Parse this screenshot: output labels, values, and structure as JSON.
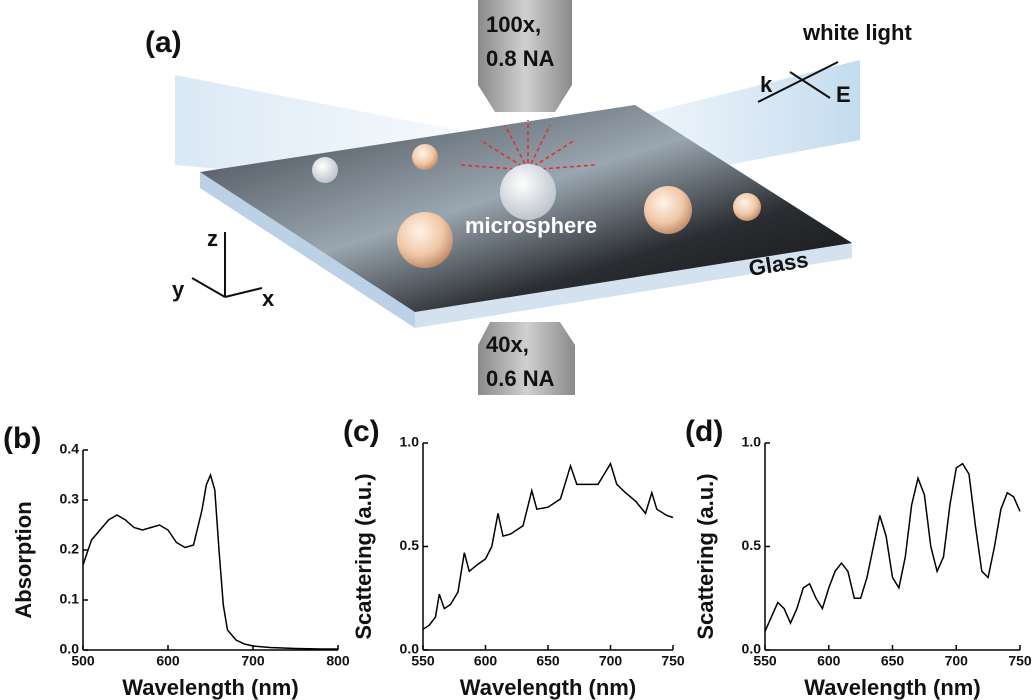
{
  "schematic": {
    "panel_label": "(a)",
    "top_objective": [
      "100x,",
      "0.8 NA"
    ],
    "bottom_objective": [
      "40x,",
      "0.6 NA"
    ],
    "light": "white light",
    "wave_vector": "k",
    "field": "E",
    "particle": "microsphere",
    "substrate": "Glass",
    "axes": [
      "z",
      "y",
      "x"
    ]
  },
  "chart_data": [
    {
      "type": "line",
      "panel_label": "(b)",
      "ylabel": "Absorption",
      "xlabel": "Wavelength (nm)",
      "color": "#000000",
      "x": [
        500,
        510,
        520,
        530,
        540,
        550,
        560,
        570,
        580,
        590,
        600,
        610,
        620,
        630,
        640,
        645,
        650,
        655,
        660,
        665,
        670,
        680,
        690,
        700,
        720,
        750,
        780,
        800
      ],
      "values": [
        0.17,
        0.22,
        0.24,
        0.26,
        0.27,
        0.26,
        0.245,
        0.24,
        0.245,
        0.25,
        0.24,
        0.215,
        0.205,
        0.21,
        0.28,
        0.33,
        0.35,
        0.32,
        0.2,
        0.09,
        0.04,
        0.02,
        0.012,
        0.008,
        0.005,
        0.003,
        0.002,
        0.002
      ],
      "xlim": [
        500,
        800
      ],
      "ylim": [
        0,
        0.4
      ],
      "xticks": [
        500,
        600,
        700,
        800
      ],
      "yticks": [
        {
          "value": 0,
          "label": "0.0"
        },
        0.1,
        0.2,
        0.3,
        0.4
      ]
    },
    {
      "type": "line",
      "panel_label": "(c)",
      "ylabel": "Scattering (a.u.)",
      "xlabel": "Wavelength (nm)",
      "color": "#000000",
      "x": [
        550,
        555,
        560,
        563,
        567,
        572,
        578,
        583,
        587,
        593,
        600,
        605,
        610,
        614,
        620,
        630,
        637,
        641,
        650,
        660,
        668,
        673,
        680,
        690,
        700,
        705,
        712,
        720,
        728,
        733,
        737,
        745,
        750
      ],
      "values": [
        0.1,
        0.12,
        0.16,
        0.27,
        0.2,
        0.22,
        0.28,
        0.47,
        0.38,
        0.41,
        0.44,
        0.5,
        0.66,
        0.55,
        0.56,
        0.6,
        0.77,
        0.68,
        0.69,
        0.73,
        0.89,
        0.8,
        0.8,
        0.8,
        0.9,
        0.8,
        0.76,
        0.72,
        0.66,
        0.76,
        0.68,
        0.65,
        0.64
      ],
      "xlim": [
        550,
        750
      ],
      "ylim": [
        0,
        1.0
      ],
      "xticks": [
        550,
        600,
        650,
        700,
        750
      ],
      "yticks": [
        {
          "value": 0,
          "label": "0.0"
        },
        0.5,
        {
          "value": 1,
          "label": "1.0"
        }
      ]
    },
    {
      "type": "line",
      "panel_label": "(d)",
      "ylabel": "Scattering (a.u.)",
      "xlabel": "Wavelength (nm)",
      "color": "#000000",
      "x": [
        550,
        555,
        560,
        565,
        570,
        575,
        580,
        585,
        590,
        595,
        600,
        605,
        610,
        615,
        620,
        625,
        630,
        635,
        640,
        645,
        650,
        655,
        660,
        665,
        670,
        675,
        680,
        685,
        690,
        695,
        700,
        705,
        710,
        715,
        720,
        725,
        730,
        735,
        740,
        745,
        750
      ],
      "values": [
        0.09,
        0.16,
        0.23,
        0.2,
        0.13,
        0.2,
        0.3,
        0.32,
        0.25,
        0.2,
        0.3,
        0.38,
        0.42,
        0.38,
        0.25,
        0.25,
        0.35,
        0.5,
        0.65,
        0.55,
        0.35,
        0.3,
        0.45,
        0.7,
        0.83,
        0.75,
        0.5,
        0.38,
        0.45,
        0.7,
        0.88,
        0.9,
        0.85,
        0.6,
        0.38,
        0.35,
        0.5,
        0.68,
        0.76,
        0.74,
        0.67
      ],
      "xlim": [
        550,
        750
      ],
      "ylim": [
        0,
        1.0
      ],
      "xticks": [
        550,
        600,
        650,
        700,
        750
      ],
      "yticks": [
        {
          "value": 0,
          "label": "0.0"
        },
        0.5,
        {
          "value": 1,
          "label": "1.0"
        }
      ]
    }
  ]
}
